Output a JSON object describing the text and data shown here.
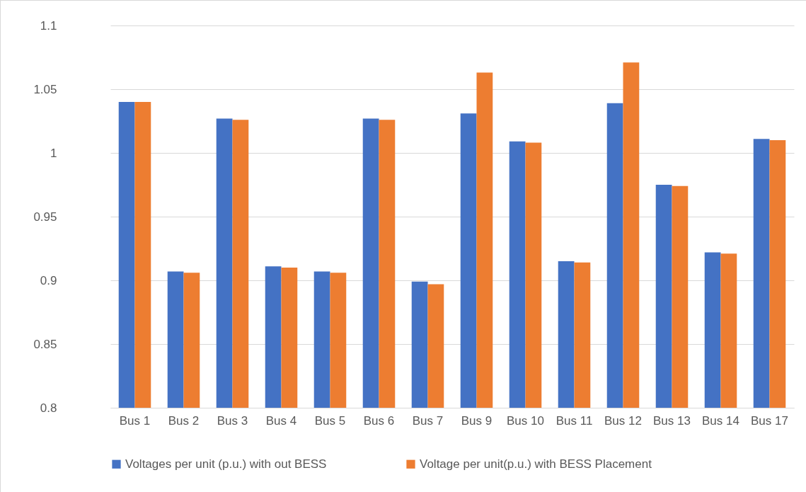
{
  "chart_data": {
    "type": "bar",
    "categories": [
      "Bus 1",
      "Bus 2",
      "Bus 3",
      "Bus 4",
      "Bus 5",
      "Bus 6",
      "Bus 7",
      "Bus 9",
      "Bus 10",
      "Bus 11",
      "Bus 12",
      "Bus 13",
      "Bus 14",
      "Bus 17"
    ],
    "series": [
      {
        "name": "Voltages per unit (p.u.) with out BESS",
        "color": "#4472c4",
        "values": [
          1.04,
          0.907,
          1.027,
          0.911,
          0.907,
          1.027,
          0.899,
          1.031,
          1.009,
          0.915,
          1.039,
          0.975,
          0.922,
          1.011
        ]
      },
      {
        "name": "Voltage per unit(p.u.) with BESS Placement",
        "color": "#ed7d31",
        "values": [
          1.04,
          0.906,
          1.026,
          0.91,
          0.906,
          1.026,
          0.897,
          1.063,
          1.008,
          0.914,
          1.071,
          0.974,
          0.921,
          1.01
        ]
      }
    ],
    "ylim": [
      0.8,
      1.1
    ],
    "yticks": [
      0.8,
      0.85,
      0.9,
      0.95,
      1,
      1.05,
      1.1
    ],
    "grid": true,
    "legend": "bottom"
  }
}
